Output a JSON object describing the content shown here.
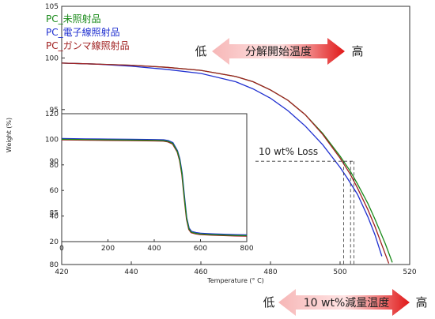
{
  "chart_data": {
    "type": "line",
    "title": "",
    "xlabel": "Temperature (° C)",
    "ylabel": "Weight (%)",
    "xlim": [
      420,
      520
    ],
    "ylim": [
      80,
      105
    ],
    "x_ticks": [
      "420",
      "440",
      "460",
      "480",
      "500",
      "520"
    ],
    "y_ticks": [
      "80",
      "85",
      "90",
      "95",
      "100",
      "105"
    ],
    "legend_position": "top-left",
    "series": [
      {
        "name": "PC_未照射品",
        "color": "#1a8a1a",
        "x": [
          420,
          430,
          440,
          450,
          460,
          470,
          475,
          480,
          485,
          490,
          495,
          500,
          503,
          505,
          508,
          510,
          513,
          515
        ],
        "y": [
          99.5,
          99.4,
          99.3,
          99.1,
          98.8,
          98.2,
          97.7,
          96.9,
          95.9,
          94.5,
          92.7,
          90.5,
          89.0,
          87.8,
          85.9,
          84.4,
          82.0,
          80.2
        ]
      },
      {
        "name": "PC_電子線照射品",
        "color": "#2030d0",
        "x": [
          420,
          430,
          440,
          450,
          460,
          470,
          475,
          480,
          485,
          490,
          495,
          500,
          502,
          505,
          508,
          510,
          512
        ],
        "y": [
          99.5,
          99.4,
          99.2,
          98.9,
          98.5,
          97.7,
          97.0,
          96.1,
          94.9,
          93.4,
          91.6,
          89.4,
          88.4,
          86.8,
          84.6,
          82.9,
          80.8
        ]
      },
      {
        "name": "PC_ガンマ線照射品",
        "color": "#a02020",
        "x": [
          420,
          430,
          440,
          450,
          460,
          470,
          475,
          480,
          485,
          490,
          495,
          500,
          503,
          505,
          508,
          510,
          512,
          514
        ],
        "y": [
          99.5,
          99.4,
          99.3,
          99.1,
          98.8,
          98.2,
          97.7,
          96.9,
          95.9,
          94.5,
          92.6,
          90.3,
          88.7,
          87.4,
          85.3,
          83.7,
          81.9,
          80.1
        ]
      }
    ],
    "inset": {
      "type": "line",
      "xlim": [
        0,
        800
      ],
      "ylim": [
        20,
        120
      ],
      "x_ticks": [
        "0",
        "200",
        "400",
        "600",
        "800"
      ],
      "y_ticks": [
        "20",
        "40",
        "60",
        "80",
        "100",
        "120"
      ],
      "x": [
        0,
        100,
        200,
        300,
        400,
        440,
        460,
        480,
        500,
        510,
        520,
        530,
        540,
        550,
        560,
        580,
        600,
        650,
        700,
        750,
        800
      ],
      "y": [
        100,
        99.8,
        99.6,
        99.4,
        99.2,
        99.0,
        98.4,
        96.8,
        90.5,
        84.0,
        73.0,
        55.0,
        38.0,
        30.0,
        27.5,
        26.5,
        26.0,
        25.5,
        25.2,
        24.9,
        24.7
      ]
    },
    "annotations": {
      "loss_label": "10 wt% Loss",
      "loss_level": 90,
      "loss_temps": [
        501,
        503,
        504
      ],
      "top_arrow": {
        "left": "低",
        "center": "分解開始温度",
        "right": "高"
      },
      "bottom_arrow": {
        "left": "低",
        "center": "10 wt%減量温度",
        "right": "高"
      }
    }
  }
}
